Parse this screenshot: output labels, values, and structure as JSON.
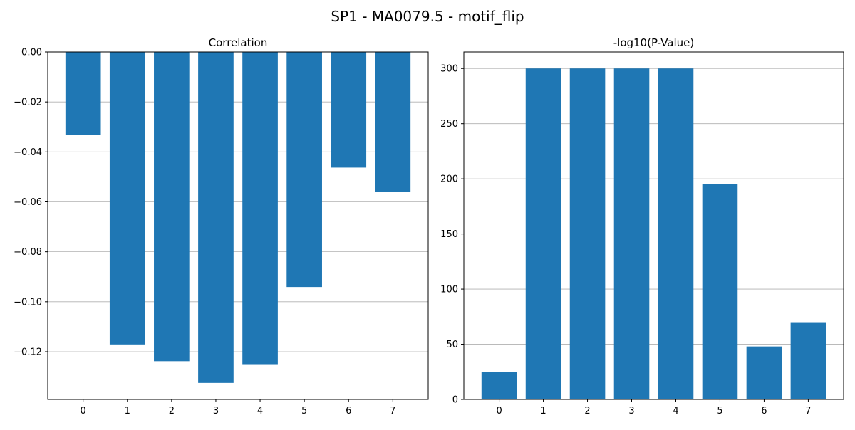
{
  "figure": {
    "title": "SP1 - MA0079.5 - motif_flip"
  },
  "colors": {
    "bar": "#1f77b4",
    "grid": "#b0b0b0",
    "axis": "#000000"
  },
  "chart_data": [
    {
      "type": "bar",
      "title": "Correlation",
      "xlabel": "",
      "ylabel": "",
      "categories": [
        "0",
        "1",
        "2",
        "3",
        "4",
        "5",
        "6",
        "7"
      ],
      "values": [
        -0.0333,
        -0.1171,
        -0.1238,
        -0.1325,
        -0.125,
        -0.0941,
        -0.0463,
        -0.0561
      ],
      "ylim": [
        -0.1391,
        0.0
      ],
      "yticks": [
        0.0,
        -0.02,
        -0.04,
        -0.06,
        -0.08,
        -0.1,
        -0.12
      ],
      "ytick_labels": [
        "0.00",
        "−0.02",
        "−0.04",
        "−0.06",
        "−0.08",
        "−0.10",
        "−0.12"
      ],
      "grid": "y"
    },
    {
      "type": "bar",
      "title": "-log10(P-Value)",
      "xlabel": "",
      "ylabel": "",
      "categories": [
        "0",
        "1",
        "2",
        "3",
        "4",
        "5",
        "6",
        "7"
      ],
      "values": [
        25,
        300,
        300,
        300,
        300,
        195,
        48,
        70
      ],
      "ylim": [
        0,
        315
      ],
      "yticks": [
        0,
        50,
        100,
        150,
        200,
        250,
        300
      ],
      "ytick_labels": [
        "0",
        "50",
        "100",
        "150",
        "200",
        "250",
        "300"
      ],
      "grid": "y"
    }
  ]
}
